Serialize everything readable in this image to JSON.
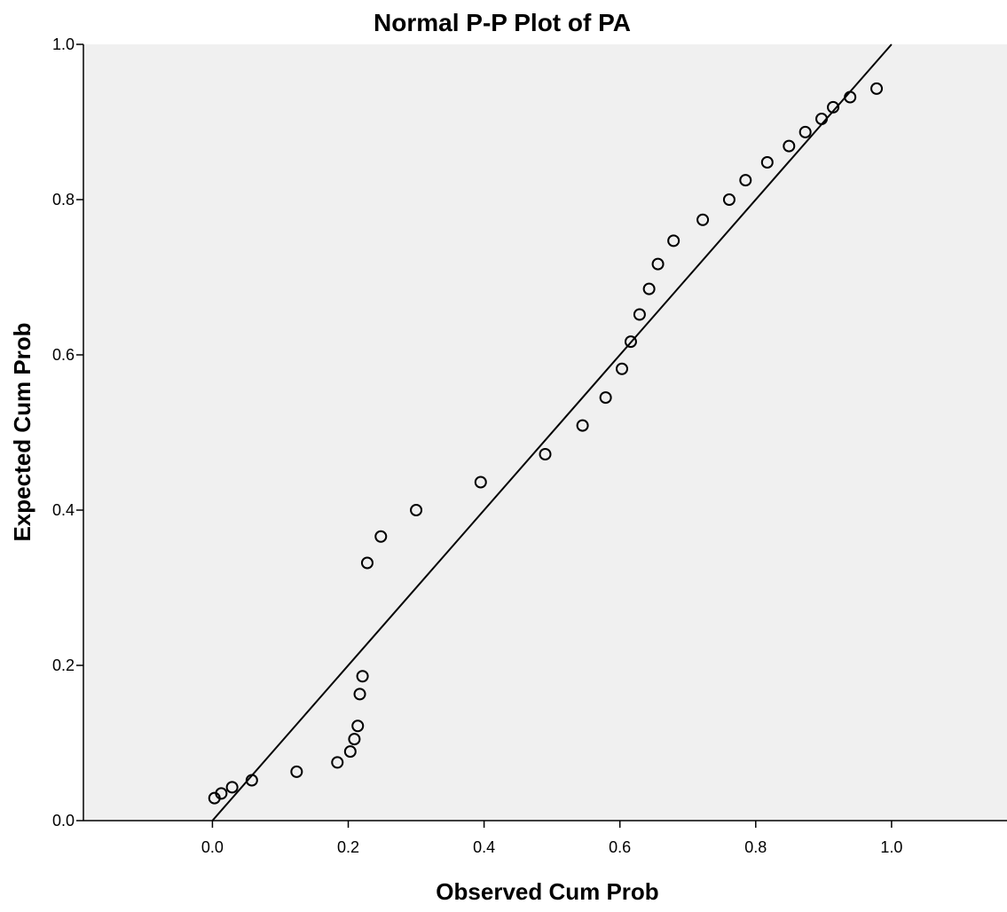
{
  "chart_data": {
    "type": "scatter",
    "title": "Normal P-P Plot of PA",
    "xlabel": "Observed Cum Prob",
    "ylabel": "Expected Cum Prob",
    "xlim": [
      -0.19,
      1.17
    ],
    "ylim": [
      0.0,
      1.0
    ],
    "x_ticks": [
      0.0,
      0.2,
      0.4,
      0.6,
      0.8,
      1.0
    ],
    "y_ticks": [
      0.0,
      0.2,
      0.4,
      0.6,
      0.8,
      1.0
    ],
    "x_tick_labels": [
      "0.0",
      "0.2",
      "0.4",
      "0.6",
      "0.8",
      "1.0"
    ],
    "y_tick_labels": [
      "0.0",
      "0.2",
      "0.4",
      "0.6",
      "0.8",
      "1.0"
    ],
    "reference_line": {
      "x": [
        0.0,
        1.0
      ],
      "y": [
        0.0,
        1.0
      ]
    },
    "grid": false,
    "background_color": "#f0f0f0",
    "marker": "open-circle",
    "points": [
      {
        "x": 0.003,
        "y": 0.029
      },
      {
        "x": 0.013,
        "y": 0.035
      },
      {
        "x": 0.029,
        "y": 0.043
      },
      {
        "x": 0.058,
        "y": 0.052
      },
      {
        "x": 0.124,
        "y": 0.063
      },
      {
        "x": 0.184,
        "y": 0.075
      },
      {
        "x": 0.203,
        "y": 0.089
      },
      {
        "x": 0.209,
        "y": 0.105
      },
      {
        "x": 0.214,
        "y": 0.122
      },
      {
        "x": 0.217,
        "y": 0.163
      },
      {
        "x": 0.221,
        "y": 0.186
      },
      {
        "x": 0.228,
        "y": 0.332
      },
      {
        "x": 0.248,
        "y": 0.366
      },
      {
        "x": 0.3,
        "y": 0.4
      },
      {
        "x": 0.395,
        "y": 0.436
      },
      {
        "x": 0.49,
        "y": 0.472
      },
      {
        "x": 0.545,
        "y": 0.509
      },
      {
        "x": 0.579,
        "y": 0.545
      },
      {
        "x": 0.603,
        "y": 0.582
      },
      {
        "x": 0.616,
        "y": 0.617
      },
      {
        "x": 0.629,
        "y": 0.652
      },
      {
        "x": 0.643,
        "y": 0.685
      },
      {
        "x": 0.656,
        "y": 0.717
      },
      {
        "x": 0.679,
        "y": 0.747
      },
      {
        "x": 0.722,
        "y": 0.774
      },
      {
        "x": 0.761,
        "y": 0.8
      },
      {
        "x": 0.785,
        "y": 0.825
      },
      {
        "x": 0.817,
        "y": 0.848
      },
      {
        "x": 0.849,
        "y": 0.869
      },
      {
        "x": 0.873,
        "y": 0.887
      },
      {
        "x": 0.897,
        "y": 0.904
      },
      {
        "x": 0.914,
        "y": 0.919
      },
      {
        "x": 0.939,
        "y": 0.932
      },
      {
        "x": 0.978,
        "y": 0.943
      }
    ]
  }
}
